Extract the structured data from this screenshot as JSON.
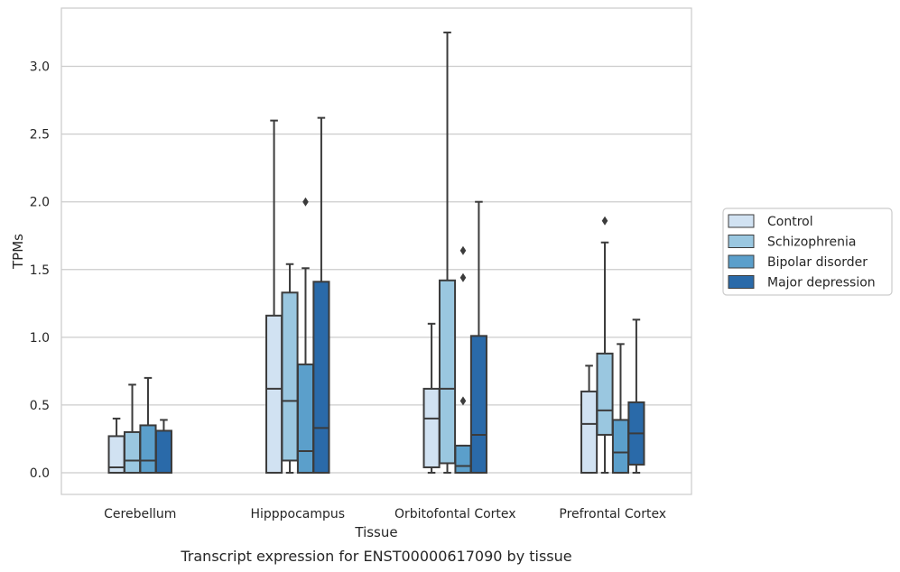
{
  "chart_data": {
    "type": "box",
    "title": "",
    "caption": "Transcript expression for ENST00000617090 by tissue",
    "xlabel": "Tissue",
    "ylabel": "TPMs",
    "ylim": [
      -0.16,
      3.43
    ],
    "yticks": [
      "0.0",
      "0.5",
      "1.0",
      "1.5",
      "2.0",
      "2.5",
      "3.0"
    ],
    "grid": true,
    "legend_position": "right",
    "categories": [
      "Cerebellum",
      "Hipppocampus",
      "Orbitofontal Cortex",
      "Prefrontal Cortex"
    ],
    "series": [
      {
        "name": "Control",
        "color": "#d1e2f2",
        "boxes": [
          {
            "min": 0.0,
            "q1": 0.0,
            "median": 0.04,
            "q3": 0.27,
            "max": 0.4,
            "outliers": []
          },
          {
            "min": 0.0,
            "q1": 0.0,
            "median": 0.62,
            "q3": 1.16,
            "max": 2.6,
            "outliers": []
          },
          {
            "min": 0.0,
            "q1": 0.04,
            "median": 0.4,
            "q3": 0.62,
            "max": 1.1,
            "outliers": []
          },
          {
            "min": 0.0,
            "q1": 0.0,
            "median": 0.36,
            "q3": 0.6,
            "max": 0.79,
            "outliers": []
          }
        ]
      },
      {
        "name": "Schizophrenia",
        "color": "#9ac7e0",
        "boxes": [
          {
            "min": 0.0,
            "q1": 0.0,
            "median": 0.09,
            "q3": 0.3,
            "max": 0.65,
            "outliers": []
          },
          {
            "min": 0.0,
            "q1": 0.09,
            "median": 0.53,
            "q3": 1.33,
            "max": 1.54,
            "outliers": []
          },
          {
            "min": 0.0,
            "q1": 0.07,
            "median": 0.62,
            "q3": 1.42,
            "max": 3.25,
            "outliers": []
          },
          {
            "min": 0.0,
            "q1": 0.28,
            "median": 0.46,
            "q3": 0.88,
            "max": 1.7,
            "outliers": [
              1.86
            ]
          }
        ]
      },
      {
        "name": "Bipolar disorder",
        "color": "#5b9fcb",
        "boxes": [
          {
            "min": 0.0,
            "q1": 0.0,
            "median": 0.09,
            "q3": 0.35,
            "max": 0.7,
            "outliers": []
          },
          {
            "min": 0.0,
            "q1": 0.0,
            "median": 0.16,
            "q3": 0.8,
            "max": 1.51,
            "outliers": [
              2.0
            ]
          },
          {
            "min": 0.0,
            "q1": 0.0,
            "median": 0.05,
            "q3": 0.2,
            "max": 0.2,
            "outliers": [
              0.53,
              1.44,
              1.64
            ]
          },
          {
            "min": 0.0,
            "q1": 0.0,
            "median": 0.15,
            "q3": 0.39,
            "max": 0.95,
            "outliers": []
          }
        ]
      },
      {
        "name": "Major depression",
        "color": "#2a6aa9",
        "boxes": [
          {
            "min": 0.0,
            "q1": 0.0,
            "median": 0.0,
            "q3": 0.31,
            "max": 0.39,
            "outliers": []
          },
          {
            "min": 0.0,
            "q1": 0.0,
            "median": 0.33,
            "q3": 1.41,
            "max": 2.62,
            "outliers": []
          },
          {
            "min": 0.0,
            "q1": 0.0,
            "median": 0.28,
            "q3": 1.01,
            "max": 2.0,
            "outliers": []
          },
          {
            "min": 0.0,
            "q1": 0.06,
            "median": 0.29,
            "q3": 0.52,
            "max": 1.13,
            "outliers": []
          }
        ]
      }
    ]
  }
}
